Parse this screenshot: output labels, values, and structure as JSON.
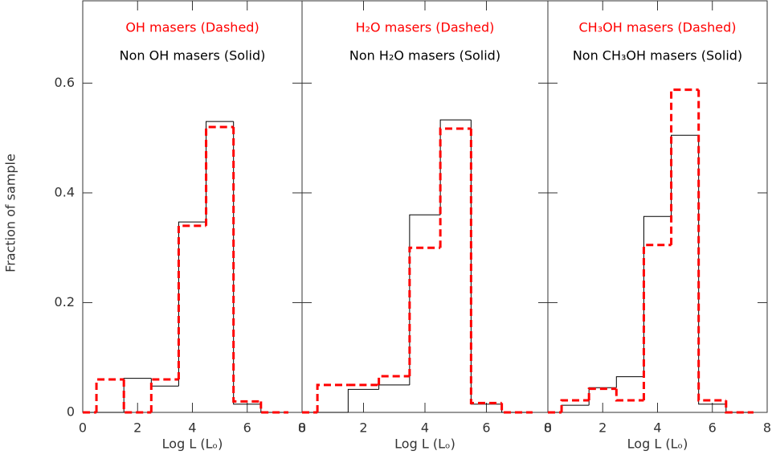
{
  "chart_data": [
    {
      "type": "histogram",
      "x_label": "Log L (Lₒ)",
      "y_label": "Fraction of sample",
      "bins": [
        0,
        0.5,
        1.5,
        2.5,
        3.5,
        4.5,
        5.5,
        6.5,
        7.5
      ],
      "series": [
        {
          "name": "OH masers (Dashed)",
          "color": "#ff0000",
          "dashed": true,
          "values": [
            0,
            0.06,
            0,
            0.06,
            0.34,
            0.52,
            0.02,
            0
          ]
        },
        {
          "name": "Non OH masers (Solid)",
          "color": "#000000",
          "dashed": false,
          "values": [
            0,
            0,
            0.062,
            0.048,
            0.347,
            0.53,
            0.015,
            0
          ]
        }
      ],
      "xlim": [
        0,
        8
      ],
      "xticks": [
        0,
        2,
        4,
        6,
        8
      ],
      "ylim": [
        0,
        0.75
      ],
      "yticks": [
        0,
        0.2,
        0.4,
        0.6
      ]
    },
    {
      "type": "histogram",
      "x_label": "Log L (Lₒ)",
      "bins": [
        0,
        0.5,
        1.5,
        2.5,
        3.5,
        4.5,
        5.5,
        6.5,
        7.5
      ],
      "series": [
        {
          "name": "H₂O masers (Dashed)",
          "color": "#ff0000",
          "dashed": true,
          "values": [
            0,
            0.05,
            0.05,
            0.066,
            0.3,
            0.517,
            0.017,
            0
          ]
        },
        {
          "name": "Non H₂O masers (Solid)",
          "color": "#000000",
          "dashed": false,
          "values": [
            0,
            0,
            0.042,
            0.05,
            0.36,
            0.533,
            0.015,
            0
          ]
        }
      ],
      "xlim": [
        0,
        8
      ],
      "xticks": [
        0,
        2,
        4,
        6,
        8
      ],
      "ylim": [
        0,
        0.75
      ],
      "yticks": [
        0,
        0.2,
        0.4,
        0.6
      ]
    },
    {
      "type": "histogram",
      "x_label": "Log L (Lₒ)",
      "bins": [
        0,
        0.5,
        1.5,
        2.5,
        3.5,
        4.5,
        5.5,
        6.5,
        7.5
      ],
      "series": [
        {
          "name": "CH₃OH masers (Dashed)",
          "color": "#ff0000",
          "dashed": true,
          "values": [
            0,
            0.022,
            0.043,
            0.022,
            0.305,
            0.588,
            0.022,
            0
          ]
        },
        {
          "name": "Non CH₃OH masers (Solid)",
          "color": "#000000",
          "dashed": false,
          "values": [
            0,
            0.013,
            0.045,
            0.065,
            0.357,
            0.505,
            0.015,
            0
          ]
        }
      ],
      "xlim": [
        0,
        8
      ],
      "xticks": [
        0,
        2,
        4,
        6,
        8
      ],
      "ylim": [
        0,
        0.75
      ],
      "yticks": [
        0,
        0.2,
        0.4,
        0.6
      ]
    }
  ]
}
